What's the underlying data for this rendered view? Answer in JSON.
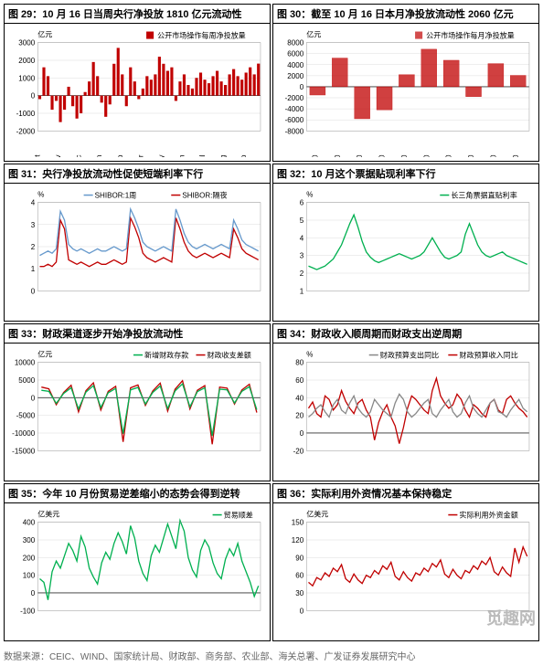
{
  "charts": [
    {
      "id": 29,
      "title": "图 29：10 月 16 日当周央行净投放 1810 亿元流动性",
      "type": "bar",
      "unit": "亿元",
      "legend": [
        "公开市场操作每周净投放量"
      ],
      "colors": [
        "#c00000"
      ],
      "ylim": [
        -2000,
        3000
      ],
      "ytick": 1000,
      "xlabels": [
        "9-Oct",
        "16-Oct",
        "23-Oct",
        "30-Oct",
        "6-Nov",
        "13-Nov",
        "20-Nov",
        "27-Nov",
        "4-Dec",
        "11-Dec",
        "18-Dec",
        "25-Dec",
        "1-Jan",
        "8-Jan",
        "15-Jan",
        "22-Jan",
        "29-Jan",
        "5-Feb",
        "12-Feb",
        "19-Feb",
        "26-Feb",
        "5-Mar",
        "12-Mar",
        "19-Mar",
        "26-Mar",
        "2-Apr",
        "9-Apr",
        "16-Apr",
        "23-Apr",
        "30-Apr",
        "7-May",
        "14-May",
        "21-May",
        "28-May",
        "4-Jun",
        "11-Jun",
        "18-Jun",
        "25-Jun",
        "2-Jul",
        "9-Jul",
        "16-Jul",
        "23-Jul",
        "30-Jul",
        "6-Aug",
        "13-Aug",
        "20-Aug",
        "27-Aug",
        "3-Sep",
        "10-Sep",
        "17-Sep",
        "24-Sep",
        "1-Oct",
        "8-Oct",
        "15-Oct"
      ],
      "values": [
        -200,
        1600,
        1100,
        -800,
        -300,
        -1500,
        -800,
        500,
        -600,
        -1300,
        -1000,
        200,
        800,
        1900,
        1100,
        -400,
        -1200,
        -500,
        1800,
        2700,
        1200,
        -600,
        1600,
        800,
        -200,
        400,
        1100,
        900,
        1200,
        2200,
        1800,
        1400,
        1600,
        -300,
        800,
        1200,
        600,
        400,
        1000,
        1300,
        900,
        700,
        1100,
        1400,
        800,
        600,
        1200,
        1500,
        1100,
        900,
        1300,
        1600,
        1200,
        1810
      ]
    },
    {
      "id": 30,
      "title": "图 30：截至 10 月 16 日本月净投放流动性 2060 亿元",
      "type": "bar",
      "unit": "亿元",
      "legend": [
        "公开市场操作每月净投放量"
      ],
      "colors": [
        "#c00000"
      ],
      "ylim": [
        -8000,
        8000
      ],
      "ytick": 2000,
      "xlabels": [
        "Jan-10",
        "Feb-10",
        "Mar-10",
        "Apr-10",
        "May-10",
        "Jun-10",
        "Jul-10",
        "Aug-10",
        "Sep-10",
        "Oct-10"
      ],
      "values": [
        -1500,
        5200,
        -5800,
        -4200,
        2200,
        6800,
        4800,
        -1800,
        4200,
        2060
      ],
      "pattern": true
    },
    {
      "id": 31,
      "title": "图 31：央行净投放流动性促使短端利率下行",
      "type": "line",
      "unit": "%",
      "legend": [
        "SHIBOR:隔夜",
        "SHIBOR:1周"
      ],
      "colors": [
        "#c00000",
        "#6699cc"
      ],
      "ylim": [
        0,
        4
      ],
      "ytick": 1,
      "series": [
        [
          1.1,
          1.1,
          1.2,
          1.1,
          1.3,
          3.2,
          2.8,
          1.4,
          1.3,
          1.2,
          1.3,
          1.2,
          1.1,
          1.2,
          1.3,
          1.2,
          1.2,
          1.3,
          1.4,
          1.3,
          1.2,
          1.3,
          3.3,
          2.9,
          2.4,
          1.7,
          1.5,
          1.4,
          1.3,
          1.4,
          1.5,
          1.4,
          1.3,
          3.3,
          2.8,
          2.2,
          1.8,
          1.6,
          1.5,
          1.6,
          1.7,
          1.6,
          1.5,
          1.6,
          1.7,
          1.6,
          1.5,
          2.8,
          2.4,
          1.9,
          1.7,
          1.6,
          1.5,
          1.4
        ],
        [
          1.6,
          1.7,
          1.8,
          1.7,
          1.9,
          3.6,
          3.2,
          2.1,
          1.9,
          1.8,
          1.9,
          1.8,
          1.7,
          1.8,
          1.9,
          1.8,
          1.8,
          1.9,
          2.0,
          1.9,
          1.8,
          1.9,
          3.7,
          3.3,
          2.8,
          2.2,
          2.0,
          1.9,
          1.8,
          1.9,
          2.0,
          1.9,
          1.8,
          3.7,
          3.2,
          2.6,
          2.2,
          2.0,
          1.9,
          2.0,
          2.1,
          2.0,
          1.9,
          2.0,
          2.1,
          2.0,
          1.9,
          3.2,
          2.8,
          2.3,
          2.1,
          2.0,
          1.9,
          1.8
        ]
      ]
    },
    {
      "id": 32,
      "title": "图 32：10 月这个票据贴现利率下行",
      "type": "line",
      "unit": "%",
      "legend": [
        "长三角票据直贴利率"
      ],
      "colors": [
        "#00b050"
      ],
      "ylim": [
        1,
        6
      ],
      "ytick": 1,
      "series": [
        [
          2.4,
          2.3,
          2.2,
          2.3,
          2.4,
          2.6,
          2.8,
          3.2,
          3.6,
          4.2,
          4.8,
          5.3,
          4.6,
          3.8,
          3.2,
          2.9,
          2.7,
          2.6,
          2.7,
          2.8,
          2.9,
          3.0,
          3.1,
          3.0,
          2.9,
          2.8,
          2.9,
          3.0,
          3.2,
          3.6,
          4.0,
          3.6,
          3.2,
          2.9,
          2.8,
          2.9,
          3.0,
          3.2,
          4.2,
          4.8,
          4.2,
          3.6,
          3.2,
          3.0,
          2.9,
          3.0,
          3.1,
          3.2,
          3.0,
          2.9,
          2.8,
          2.7,
          2.6,
          2.5
        ]
      ]
    },
    {
      "id": 33,
      "title": "图 33：财政渠道逐步开始净投放流动性",
      "type": "line",
      "unit": "亿元",
      "legend": [
        "财政收支差额",
        "新增财政存款"
      ],
      "colors": [
        "#c00000",
        "#00b050"
      ],
      "ylim": [
        -15000,
        10000
      ],
      "ytick": 5000,
      "series": [
        [
          3000,
          2500,
          -2000,
          1500,
          3500,
          -4000,
          2000,
          4200,
          -3500,
          1800,
          3200,
          -12500,
          2800,
          3600,
          -2200,
          1900,
          4100,
          -3800,
          2400,
          4800,
          -3200,
          2100,
          3400,
          -13200,
          3000,
          2700,
          -1800,
          2200,
          3800,
          -4200
        ],
        [
          2100,
          1800,
          -1600,
          1200,
          2800,
          -3200,
          1600,
          3400,
          -2800,
          1400,
          2600,
          -10200,
          2200,
          2900,
          -1800,
          1500,
          3300,
          -3100,
          1900,
          3900,
          -2600,
          1700,
          2800,
          -10800,
          2400,
          2200,
          -1500,
          1800,
          3100,
          -3400
        ]
      ]
    },
    {
      "id": 34,
      "title": "图 34：财政收入顺周期而财政支出逆周期",
      "type": "line",
      "unit": "%",
      "legend": [
        "财政预算收入同比",
        "财政预算支出同比"
      ],
      "colors": [
        "#c00000",
        "#888888"
      ],
      "ylim": [
        -20,
        80
      ],
      "ytick": 20,
      "series": [
        [
          28,
          35,
          22,
          18,
          42,
          38,
          26,
          32,
          48,
          36,
          28,
          22,
          34,
          38,
          26,
          18,
          -8,
          12,
          24,
          32,
          18,
          8,
          -12,
          6,
          28,
          42,
          38,
          32,
          26,
          22,
          48,
          62,
          42,
          34,
          28,
          32,
          44,
          38,
          26,
          18,
          32,
          28,
          22,
          18,
          34,
          38,
          26,
          22,
          38,
          42,
          34,
          28,
          24,
          18
        ],
        [
          18,
          22,
          28,
          32,
          24,
          18,
          32,
          38,
          26,
          22,
          34,
          42,
          28,
          22,
          18,
          24,
          38,
          32,
          26,
          22,
          18,
          34,
          44,
          38,
          24,
          18,
          22,
          28,
          34,
          38,
          22,
          18,
          26,
          32,
          38,
          24,
          18,
          22,
          34,
          42,
          28,
          22,
          18,
          26,
          34,
          38,
          24,
          22,
          18,
          26,
          32,
          38,
          28,
          24
        ]
      ]
    },
    {
      "id": 35,
      "title": "图 35：今年 10 月份贸易逆差缩小的态势会得到逆转",
      "type": "line",
      "unit": "亿美元",
      "legend": [
        "贸易顺差"
      ],
      "colors": [
        "#00b050"
      ],
      "ylim": [
        -100,
        400
      ],
      "ytick": 100,
      "series": [
        [
          80,
          60,
          -40,
          120,
          180,
          140,
          210,
          280,
          240,
          180,
          320,
          260,
          140,
          90,
          50,
          170,
          230,
          190,
          280,
          340,
          290,
          220,
          380,
          310,
          180,
          110,
          70,
          210,
          270,
          230,
          310,
          390,
          320,
          250,
          410,
          350,
          200,
          130,
          90,
          240,
          300,
          260,
          170,
          110,
          80,
          190,
          250,
          210,
          280,
          180,
          120,
          60,
          -20,
          40
        ]
      ]
    },
    {
      "id": 36,
      "title": "图 36：实际利用外资情况基本保持稳定",
      "type": "line",
      "unit": "亿美元",
      "legend": [
        "实际利用外资金额"
      ],
      "colors": [
        "#c00000"
      ],
      "ylim": [
        0,
        150
      ],
      "ytick": 30,
      "series": [
        [
          48,
          42,
          56,
          52,
          64,
          58,
          72,
          66,
          78,
          54,
          48,
          62,
          52,
          46,
          60,
          56,
          68,
          62,
          76,
          70,
          82,
          58,
          52,
          66,
          56,
          50,
          64,
          60,
          72,
          66,
          80,
          74,
          86,
          62,
          56,
          70,
          60,
          54,
          68,
          64,
          76,
          70,
          84,
          78,
          90,
          66,
          60,
          74,
          64,
          58,
          106,
          82,
          108,
          92
        ]
      ]
    }
  ],
  "footer": "数据来源：CEIC、WIND、国家统计局、财政部、商务部、农业部、海关总署、广发证券发展研究中心",
  "watermark": "觅趣网",
  "style": {
    "grid_color": "#ccc",
    "text_color": "#000",
    "bg": "#fff",
    "title_fontsize": 11,
    "axis_fontsize": 8
  }
}
